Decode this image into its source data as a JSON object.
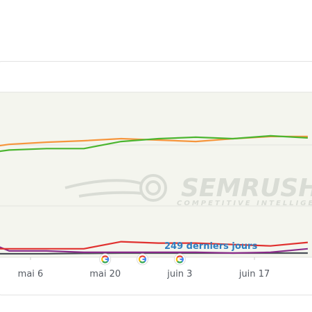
{
  "chart_data": {
    "type": "line",
    "x": [
      "2019-04-28",
      "2019-05-02",
      "2019-05-09",
      "2019-05-16",
      "2019-05-23",
      "2019-05-30",
      "2019-06-06",
      "2019-06-13",
      "2019-06-20",
      "2019-06-27"
    ],
    "x_tick_labels": [
      "mai 6",
      "mai 20",
      "juin 3",
      "juin 17"
    ],
    "period_label": "249 derniers jours",
    "series": [
      {
        "color": "#4bb52f",
        "values": [
          71,
          73,
          74,
          74,
          79,
          81,
          82,
          81,
          83,
          81.5
        ]
      },
      {
        "color": "#f6953c",
        "values": [
          75,
          77,
          78.5,
          79.5,
          81,
          80,
          79,
          81,
          82.5,
          82.5
        ]
      },
      {
        "color": "#e0302e",
        "values": [
          3.5,
          3.5,
          3.5,
          3.5,
          8.5,
          7.5,
          7.5,
          6.5,
          5.5,
          8
        ]
      },
      {
        "color": "#8a2c8a",
        "values": [
          8,
          2,
          2,
          1,
          1,
          1,
          1,
          0.5,
          1,
          3.5
        ]
      },
      {
        "color": "#4a4f57",
        "values": [
          0,
          0,
          0,
          0.3,
          0.5,
          0.5,
          0.5,
          0.5,
          0.5,
          0.5
        ]
      }
    ],
    "google_update_markers": [
      "2019-05-20",
      "2019-05-27",
      "2019-06-03"
    ],
    "grid": true,
    "watermark": "SEMRUSH",
    "watermark_tagline": "COMPETITIVE INTELLIGENCE"
  }
}
